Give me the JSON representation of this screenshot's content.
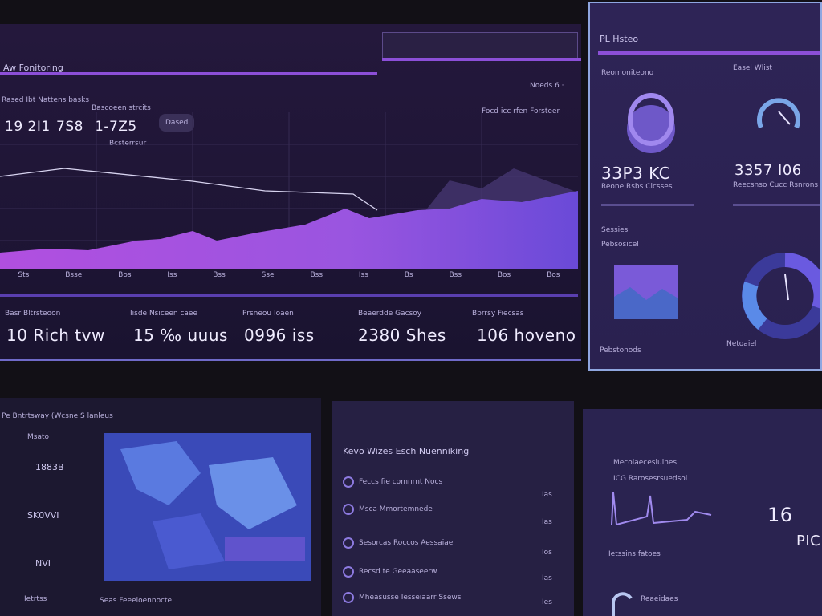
{
  "main": {
    "title": "Aw Fonitoring",
    "header_note": "Noeds 6 ·",
    "stat_labels": [
      "Rased Ibt Nattens basks",
      "Bascoeen strcits"
    ],
    "stat_values": [
      "19 2I1",
      "7S8",
      "1-7Z5"
    ],
    "stat_sub": "Bcsterrsur",
    "button": "Dased",
    "chart_note": "Focd icc rfen Forsteer",
    "x_labels": [
      "Sts",
      "Bsse",
      "Bos",
      "Iss",
      "Bss",
      "Sse",
      "Bss",
      "Iss",
      "Bs",
      "Bss",
      "Bos",
      "Bos"
    ],
    "kpis": [
      {
        "label": "Basr Bltrsteoon",
        "value": "10 Rich tvw"
      },
      {
        "label": "Iisde Nsiceen caee",
        "value": "15 ‰ uuus"
      },
      {
        "label": "Prsneou Ioaen",
        "value": "0996 iss"
      },
      {
        "label": "Beaerdde Gacsoy",
        "value": "2380 Shes"
      },
      {
        "label": "Bbrrsy Fiecsas",
        "value": "106 hoveno"
      }
    ]
  },
  "side": {
    "title": "PL Hsteo",
    "left_heading": "Reomoniteono",
    "right_heading": "Easel Wlist",
    "left_value": "33P3 KC",
    "left_caption": "Reone Rsbs Cicsses",
    "right_value": "3357 I06",
    "right_caption": "Reecsnso Cucc Rsnrons",
    "note": "Sessies",
    "section": "Pebsosicel",
    "footer_left": "Pebstonods",
    "footer_right": "Netoaiel"
  },
  "regions": {
    "title": "Pe Bntrtsway (Wcsne S lanleus",
    "label": "Msato",
    "values": [
      "1883B",
      "SK0VVI",
      "NVI"
    ],
    "footer_left": "Ietrtss",
    "footer_right": "Seas Feeeloennocte"
  },
  "activity": {
    "title": "Kevo Wizes Esch Nuenniking",
    "items": [
      {
        "text": "Feccs fie comnrnt Nocs",
        "tag": "Ias"
      },
      {
        "text": "Msca Mmortemnede",
        "tag": "Ias"
      },
      {
        "text": "Sesorcas Roccos Aessaiae",
        "tag": "Ios"
      },
      {
        "text": "Recsd te Geeaaseerw",
        "tag": "Ias"
      },
      {
        "text": "Mheasusse Iesseiaarr Ssews",
        "tag": "Ies"
      }
    ]
  },
  "metrics": {
    "title": "Mecolaecesluines",
    "subtitle": "ICG Rarosesrsuedsol",
    "section": "Ietssins fatoes",
    "footer": "Reaeidaes",
    "value": "16",
    "unit": "PIC"
  }
}
